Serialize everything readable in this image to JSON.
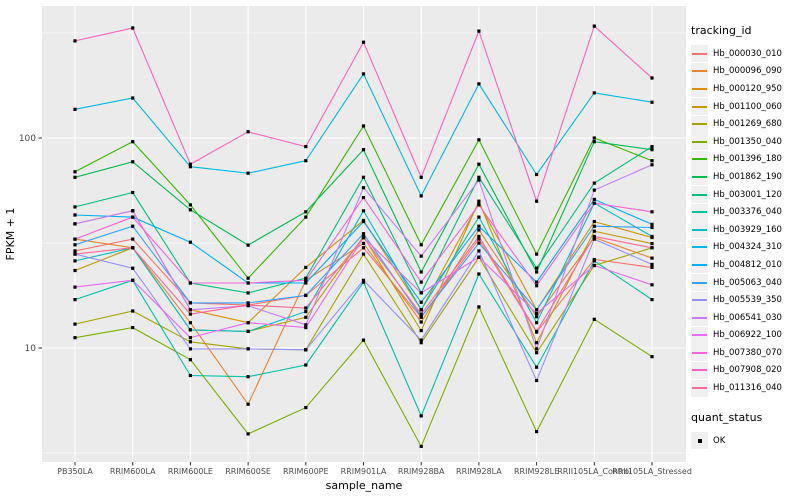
{
  "figure": {
    "background": "#FFFFFF",
    "panel_background": "#EBEBEB",
    "grid_major_color": "#FFFFFF",
    "grid_minor_color": "#F7F7F7",
    "axis_text_color": "#4D4D4D",
    "axis_title_color": "#000000",
    "tick_color": "#333333",
    "point_color": "#000000"
  },
  "legend": {
    "tracking_title": "tracking_id",
    "quant_title": "quant_status",
    "quant_items": [
      {
        "label": "OK",
        "symbol": "black-square"
      }
    ]
  },
  "chart_data": {
    "type": "line",
    "title": "",
    "xlabel": "sample_name",
    "ylabel": "FPKM + 1",
    "y_scale": "log10",
    "y_tick_values": [
      100,
      10
    ],
    "y_minor_values": [
      316.23,
      31.62,
      3.162
    ],
    "ylim": [
      2.8,
      407
    ],
    "grid": true,
    "legend_position": "right",
    "point_shape": "small-black-square",
    "categories": [
      "PB350LA",
      "RRIM600LA",
      "RRIM600LE",
      "RRIM600SE",
      "RRIM600PE",
      "RRIM901LA",
      "RRIM928BA",
      "RRIM928LA",
      "RRIM928LE",
      "RRII105LA_Control",
      "RRII105LA_Stressed"
    ],
    "series": [
      {
        "name": "Hb_000030_010",
        "color": "#F8766D",
        "values": [
          29,
          33,
          16.4,
          16,
          17.8,
          30,
          14,
          33,
          11.9,
          26.4,
          24.2
        ]
      },
      {
        "name": "Hb_000096_090",
        "color": "#EA8331",
        "values": [
          33,
          30,
          13.2,
          5.4,
          21,
          31.5,
          13.3,
          36.5,
          14.1,
          33.6,
          26.8
        ]
      },
      {
        "name": "Hb_000120_950",
        "color": "#D89000",
        "values": [
          39,
          45,
          15.2,
          13.2,
          24.2,
          40.5,
          15.2,
          49,
          15.2,
          40,
          33.6
        ]
      },
      {
        "name": "Hb_001100_060",
        "color": "#C09B00",
        "values": [
          23.4,
          30,
          12.2,
          12,
          14,
          34,
          12.1,
          50,
          10.6,
          36,
          31.4
        ]
      },
      {
        "name": "Hb_001269_680",
        "color": "#A3A500",
        "values": [
          13,
          15,
          10.7,
          9.9,
          9.8,
          28,
          10.6,
          27,
          9.5,
          24.7,
          30
        ]
      },
      {
        "name": "Hb_001350_040",
        "color": "#7CAE00",
        "values": [
          11.2,
          12.5,
          8.8,
          3.9,
          5.2,
          10.9,
          3.4,
          15.7,
          4.0,
          13.7,
          9.1
        ]
      },
      {
        "name": "Hb_001396_180",
        "color": "#39B600",
        "values": [
          69,
          96,
          48,
          21.5,
          42,
          114,
          31,
          98,
          28,
          100,
          78
        ]
      },
      {
        "name": "Hb_001862_190",
        "color": "#00BB4E",
        "values": [
          65,
          77,
          45.5,
          30.9,
          44.5,
          88,
          23,
          75,
          23,
          96,
          88
        ]
      },
      {
        "name": "Hb_003001_120",
        "color": "#00BF7D",
        "values": [
          47,
          55,
          20.4,
          18.3,
          21.5,
          65,
          18.3,
          65,
          24,
          61,
          91
        ]
      },
      {
        "name": "Hb_003376_040",
        "color": "#00C1A3",
        "values": [
          17,
          21,
          7.4,
          7.3,
          8.3,
          20.6,
          4.75,
          22.5,
          8.1,
          26,
          17
        ]
      },
      {
        "name": "Hb_003929_160",
        "color": "#00BFC4",
        "values": [
          26,
          30,
          12.2,
          12,
          14.9,
          45,
          15.2,
          42,
          13.2,
          49,
          34
        ]
      },
      {
        "name": "Hb_004324_310",
        "color": "#00BAE0",
        "values": [
          137,
          155,
          73,
          68,
          78,
          202,
          53,
          181,
          67,
          164,
          148
        ]
      },
      {
        "name": "Hb_004812_010",
        "color": "#00B0F6",
        "values": [
          43,
          42,
          31.9,
          20.4,
          20.4,
          40,
          16.5,
          38,
          20.6,
          51,
          38.8
        ]
      },
      {
        "name": "Hb_005063_040",
        "color": "#35A2FF",
        "values": [
          31,
          38,
          16.4,
          16.4,
          17.8,
          35,
          14.1,
          31.6,
          15.2,
          38,
          37.5
        ]
      },
      {
        "name": "Hb_005539_350",
        "color": "#9590FF",
        "values": [
          28,
          24,
          9.9,
          9.9,
          9.8,
          21,
          10.9,
          29,
          7.0,
          33,
          25
        ]
      },
      {
        "name": "Hb_006541_030",
        "color": "#C77CFF",
        "values": [
          39,
          45,
          15.2,
          15.9,
          12.9,
          58,
          27.4,
          63,
          9.9,
          56.5,
          74.5
        ]
      },
      {
        "name": "Hb_006922_100",
        "color": "#E76BF3",
        "values": [
          19.5,
          21,
          11.2,
          13.2,
          12.5,
          33.5,
          18.3,
          27.1,
          14.6,
          24.7,
          20
        ]
      },
      {
        "name": "Hb_007380_070",
        "color": "#FA62DB",
        "values": [
          33,
          42,
          20.4,
          20.4,
          21,
          52,
          20.6,
          48,
          19.8,
          49,
          44.5
        ]
      },
      {
        "name": "Hb_007908_020",
        "color": "#FF62BC",
        "values": [
          290,
          334,
          75,
          107,
          91,
          286,
          65,
          323,
          50,
          341,
          193
        ]
      },
      {
        "name": "Hb_011316_040",
        "color": "#FF6A98",
        "values": [
          28,
          30,
          14.5,
          16,
          15.5,
          33.5,
          14.5,
          34,
          12,
          34,
          30
        ]
      }
    ]
  }
}
